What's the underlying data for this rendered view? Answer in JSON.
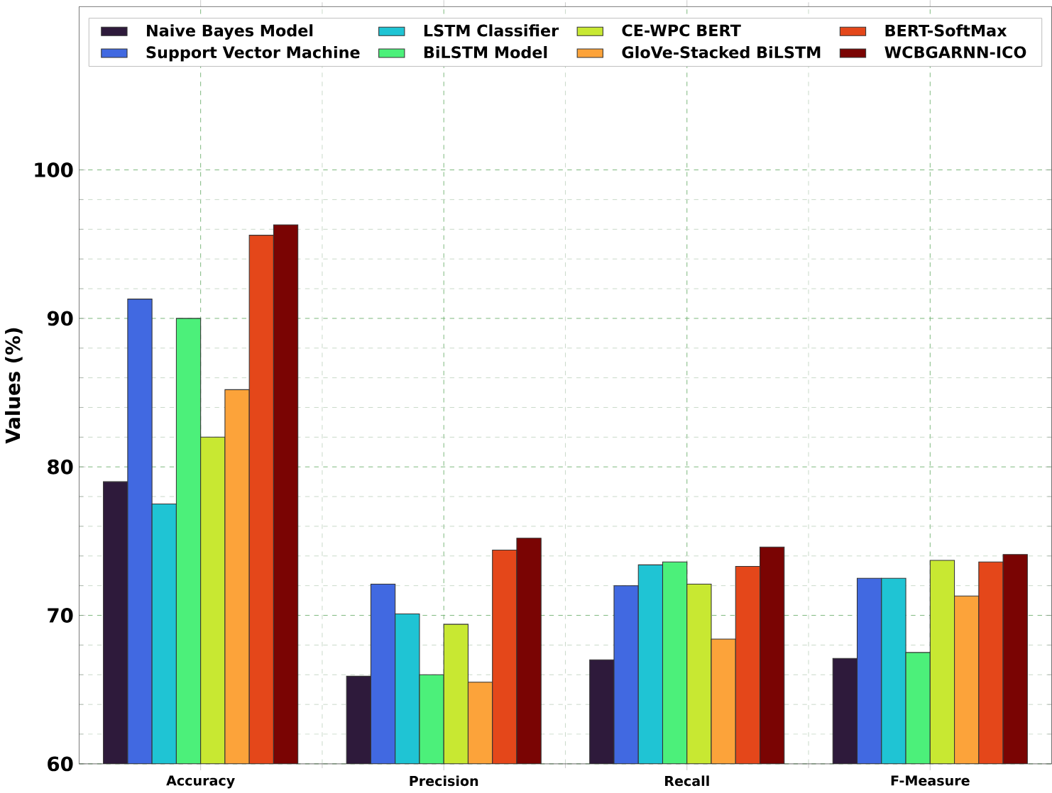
{
  "chart_data": {
    "type": "bar",
    "ylabel": "Values (%)",
    "categories": [
      "Accuracy",
      "Precision",
      "Recall",
      "F-Measure"
    ],
    "series": [
      {
        "name": "Naive Bayes Model",
        "color": "#2e1a3b",
        "values": [
          79.0,
          65.9,
          67.0,
          67.1
        ]
      },
      {
        "name": "Support Vector Machine",
        "color": "#4169e1",
        "values": [
          91.3,
          72.1,
          72.0,
          72.5
        ]
      },
      {
        "name": "LSTM Classifier",
        "color": "#1fc4d4",
        "values": [
          77.5,
          70.1,
          73.4,
          72.5
        ]
      },
      {
        "name": "BiLSTM Model",
        "color": "#4cf07a",
        "values": [
          90.0,
          66.0,
          73.6,
          67.5
        ]
      },
      {
        "name": "CE-WPC BERT",
        "color": "#c8e832",
        "values": [
          82.0,
          69.4,
          72.1,
          73.7
        ]
      },
      {
        "name": "GloVe-Stacked BiLSTM",
        "color": "#fca33a",
        "values": [
          85.2,
          65.5,
          68.4,
          71.3
        ]
      },
      {
        "name": "BERT-SoftMax",
        "color": "#e4471a",
        "values": [
          95.6,
          74.4,
          73.3,
          73.6
        ]
      },
      {
        "name": "WCBGARNN-ICO",
        "color": "#7a0403",
        "values": [
          96.3,
          75.2,
          74.6,
          74.1
        ]
      }
    ],
    "ylim": [
      60,
      111
    ],
    "yticks": [
      60,
      70,
      80,
      90,
      100
    ],
    "grid": true,
    "legend": "top"
  }
}
